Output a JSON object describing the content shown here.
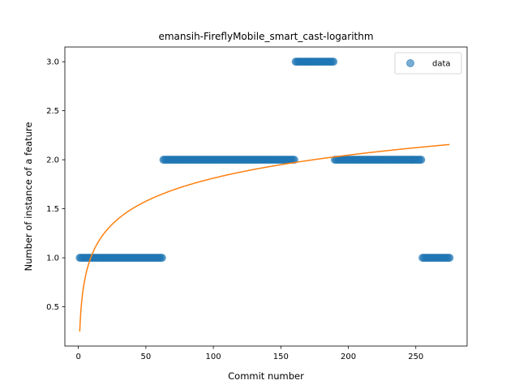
{
  "chart_data": {
    "type": "scatter",
    "title": "emansih-FireflyMobile_smart_cast-logarithm",
    "xlabel": "Commit number",
    "ylabel": "Number of instance of a feature",
    "xlim": [
      -10,
      288
    ],
    "ylim": [
      0.1,
      3.15
    ],
    "xticks": [
      0,
      50,
      100,
      150,
      200,
      250
    ],
    "yticks": [
      0.5,
      1.0,
      1.5,
      2.0,
      2.5,
      3.0
    ],
    "ytick_labels": [
      "0.5",
      "1.0",
      "1.5",
      "2.0",
      "2.5",
      "3.0"
    ],
    "legend": {
      "position": "top-right",
      "entries": [
        "data"
      ]
    },
    "series": [
      {
        "name": "data",
        "kind": "scatter",
        "color": "#1f77b4",
        "runs": [
          {
            "x_start": 1,
            "x_end": 62,
            "y": 1.0
          },
          {
            "x_start": 63,
            "x_end": 160,
            "y": 2.0
          },
          {
            "x_start": 161,
            "x_end": 189,
            "y": 3.0
          },
          {
            "x_start": 190,
            "x_end": 254,
            "y": 2.0
          },
          {
            "x_start": 255,
            "x_end": 275,
            "y": 1.0
          }
        ]
      },
      {
        "kind": "line",
        "color": "#ff7f0e",
        "fit": "logarithmic",
        "a": 0.2485,
        "b": 0.3395,
        "x_range": [
          1,
          275
        ]
      }
    ]
  }
}
